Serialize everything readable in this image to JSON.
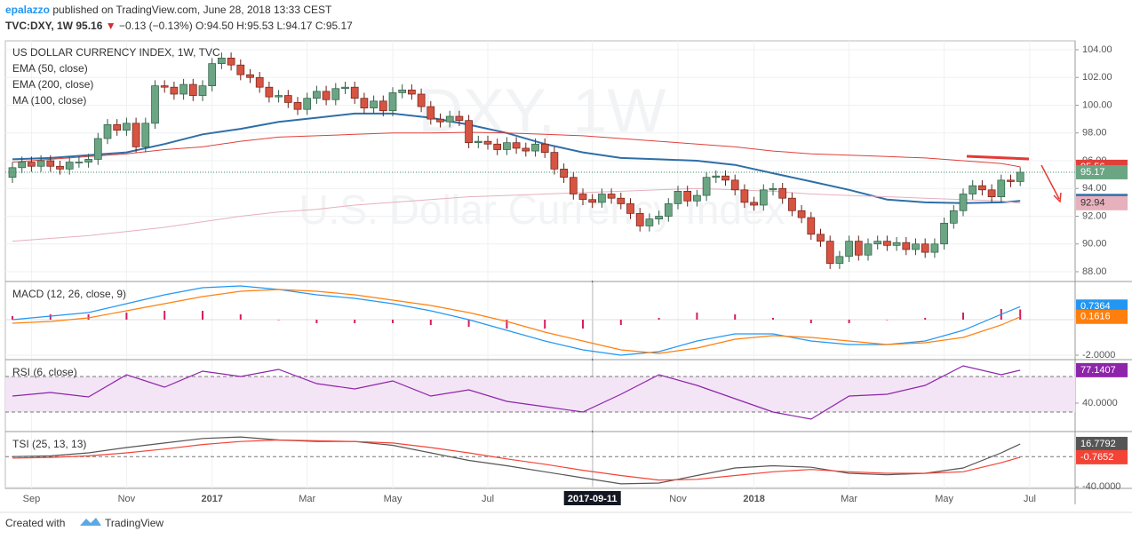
{
  "header": {
    "author": "epalazzo",
    "published": "published on TradingView.com, June 28, 2018 13:33 CEST",
    "symbol": "TVC:DXY, 1W",
    "last": "95.16",
    "arrow": "▼",
    "change": "−0.13 (−0.13%)",
    "ohlc": "O:94.50 H:95.53 L:94.17 C:95.17"
  },
  "footer": {
    "created": "Created with",
    "brand": "TradingView"
  },
  "chart_data": [
    {
      "type": "candlestick",
      "title": "US DOLLAR CURRENCY INDEX, 1W, TVC",
      "watermark": [
        "DXY, 1W",
        "U.S. Dollar Currency Index"
      ],
      "crosshair": "2017-09-11",
      "grid": true,
      "up_color": "#6ba583",
      "down_color": "#d75442",
      "categories": [
        null,
        null,
        "Sep",
        null,
        null,
        null,
        null,
        null,
        null,
        null,
        null,
        null,
        "Nov",
        null,
        null,
        null,
        null,
        null,
        null,
        null,
        null,
        "2017",
        null,
        null,
        null,
        null,
        null,
        null,
        null,
        null,
        null,
        "Mar",
        null,
        null,
        null,
        null,
        null,
        null,
        null,
        null,
        "May",
        null,
        null,
        null,
        null,
        null,
        null,
        null,
        null,
        null,
        "Jul",
        null,
        null,
        null,
        null,
        null,
        null,
        null,
        null,
        null,
        null,
        "2017-09-11",
        null,
        null,
        null,
        null,
        null,
        null,
        null,
        null,
        "Nov",
        null,
        null,
        null,
        null,
        null,
        null,
        null,
        "2018",
        null,
        null,
        null,
        null,
        null,
        null,
        null,
        null,
        null,
        "Mar",
        null,
        null,
        null,
        null,
        null,
        null,
        null,
        null,
        null,
        "May",
        null,
        null,
        null,
        null,
        null,
        null,
        null,
        null,
        "Jul",
        null
      ],
      "open": [
        94.8,
        95.5,
        95.9,
        95.6,
        96.0,
        95.6,
        95.4,
        95.9,
        95.9,
        96.1,
        97.6,
        98.6,
        98.2,
        98.7,
        97.0,
        98.7,
        101.4,
        101.3,
        100.8,
        101.5,
        100.7,
        101.4,
        103.0,
        103.4,
        102.9,
        102.2,
        102.0,
        101.3,
        100.6,
        100.7,
        100.2,
        99.7,
        100.5,
        101.0,
        100.4,
        101.2,
        101.3,
        100.5,
        99.8,
        100.3,
        99.6,
        100.9,
        101.1,
        100.8,
        99.9,
        99.0,
        98.8,
        99.2,
        98.9,
        97.3,
        97.4,
        97.2,
        96.8,
        97.3,
        96.9,
        96.7,
        97.2,
        96.6,
        95.4,
        94.8,
        93.6,
        93.2,
        93.0,
        93.6,
        93.3,
        92.9,
        92.2,
        91.3,
        91.8,
        92.0,
        92.9,
        93.8,
        93.1,
        93.5,
        94.8,
        94.9,
        94.6,
        93.9,
        93.0,
        92.8,
        93.9,
        94.0,
        93.3,
        92.4,
        91.9,
        90.7,
        90.2,
        88.6,
        89.1,
        90.2,
        89.2,
        90.0,
        90.2,
        89.9,
        90.1,
        89.6,
        90.0,
        89.4,
        90.0,
        91.5,
        92.4,
        93.6,
        94.2,
        93.9,
        93.4,
        94.6,
        94.5,
        null,
        null
      ],
      "high": [
        95.9,
        96.3,
        96.3,
        96.4,
        96.4,
        96.0,
        96.3,
        96.3,
        96.5,
        98.0,
        99.0,
        99.0,
        99.1,
        99.1,
        99.1,
        101.8,
        101.8,
        101.7,
        101.9,
        101.9,
        101.8,
        103.4,
        103.8,
        103.8,
        103.3,
        102.6,
        102.4,
        101.7,
        101.1,
        101.1,
        100.6,
        100.9,
        101.4,
        101.4,
        101.6,
        101.7,
        101.7,
        100.9,
        100.7,
        100.7,
        101.3,
        101.5,
        101.5,
        101.2,
        100.3,
        99.4,
        99.6,
        99.6,
        99.3,
        97.8,
        97.8,
        97.6,
        97.7,
        97.7,
        97.3,
        97.6,
        97.6,
        97.0,
        95.8,
        95.2,
        94.0,
        93.6,
        94.0,
        94.0,
        93.7,
        93.3,
        92.6,
        92.2,
        92.4,
        93.3,
        94.2,
        94.2,
        93.9,
        95.2,
        95.3,
        95.3,
        95.0,
        94.3,
        93.4,
        94.3,
        94.4,
        94.4,
        93.7,
        92.8,
        92.3,
        91.1,
        90.6,
        89.5,
        90.6,
        90.6,
        90.4,
        90.6,
        90.6,
        90.5,
        90.5,
        90.4,
        90.4,
        90.4,
        91.9,
        92.8,
        94.0,
        94.6,
        94.6,
        94.3,
        95.0,
        95.0,
        95.53,
        null,
        null
      ],
      "low": [
        94.4,
        95.1,
        95.2,
        95.2,
        95.2,
        95.0,
        95.0,
        95.5,
        95.5,
        95.7,
        97.2,
        97.8,
        97.8,
        96.6,
        96.6,
        98.3,
        100.9,
        100.4,
        100.4,
        100.3,
        100.3,
        101.0,
        102.6,
        102.5,
        101.8,
        101.6,
        100.9,
        100.2,
        100.2,
        99.8,
        99.3,
        99.3,
        100.1,
        100.0,
        100.0,
        100.8,
        100.1,
        99.4,
        99.4,
        99.2,
        99.2,
        100.5,
        100.4,
        99.5,
        98.6,
        98.4,
        98.4,
        98.5,
        96.9,
        96.9,
        96.8,
        96.4,
        96.4,
        96.5,
        96.3,
        96.3,
        96.2,
        95.0,
        94.4,
        93.2,
        92.8,
        92.6,
        92.6,
        92.9,
        92.5,
        91.8,
        90.9,
        90.9,
        91.4,
        91.6,
        92.5,
        92.7,
        92.7,
        93.1,
        94.4,
        94.2,
        93.5,
        92.6,
        92.4,
        92.4,
        93.5,
        92.9,
        92.0,
        91.5,
        90.3,
        89.8,
        88.2,
        88.2,
        88.7,
        88.8,
        88.8,
        89.6,
        89.5,
        89.5,
        89.2,
        89.2,
        89.0,
        89.0,
        89.6,
        91.1,
        92.0,
        93.2,
        93.5,
        93.0,
        93.0,
        94.1,
        94.17,
        null,
        null
      ],
      "close": [
        95.5,
        95.9,
        95.6,
        96.0,
        95.6,
        95.4,
        95.9,
        95.9,
        96.1,
        97.6,
        98.6,
        98.2,
        98.7,
        97.0,
        98.7,
        101.4,
        101.3,
        100.8,
        101.5,
        100.7,
        101.4,
        103.0,
        103.4,
        102.9,
        102.2,
        102.0,
        101.3,
        100.6,
        100.7,
        100.2,
        99.7,
        100.5,
        101.0,
        100.4,
        101.2,
        101.3,
        100.5,
        99.8,
        100.3,
        99.6,
        100.9,
        101.1,
        100.8,
        99.9,
        99.0,
        98.8,
        99.2,
        98.9,
        97.3,
        97.4,
        97.2,
        96.8,
        97.3,
        96.9,
        96.7,
        97.2,
        96.6,
        95.4,
        94.8,
        93.6,
        93.2,
        93.0,
        93.6,
        93.3,
        92.9,
        92.2,
        91.3,
        91.8,
        92.0,
        92.9,
        93.8,
        93.1,
        93.5,
        94.8,
        94.9,
        94.6,
        93.9,
        93.0,
        92.8,
        93.9,
        94.0,
        93.3,
        92.4,
        91.9,
        90.7,
        90.2,
        88.6,
        89.1,
        90.2,
        89.2,
        90.0,
        90.2,
        89.9,
        90.1,
        89.6,
        90.0,
        89.4,
        90.0,
        91.5,
        92.4,
        93.6,
        94.2,
        93.9,
        93.4,
        94.6,
        94.5,
        95.17,
        null,
        null
      ],
      "ylim": [
        87.36,
        104.64
      ],
      "yticks": [
        {
          "value": 88,
          "label": "88.00"
        },
        {
          "value": 90,
          "label": "90.00"
        },
        {
          "value": 92,
          "label": "92.00"
        },
        {
          "value": 94,
          "label": "94.00"
        },
        {
          "value": 96,
          "label": "96.00"
        },
        {
          "value": 98,
          "label": "98.00"
        },
        {
          "value": 100,
          "label": "100.00"
        },
        {
          "value": 102,
          "label": "102.00"
        },
        {
          "value": 104,
          "label": "104.00"
        }
      ],
      "series": [
        {
          "name": "EMA (50, close)",
          "color": "#2f6ea8",
          "width": 2,
          "last_label": "93.10",
          "x": [
            0,
            4,
            8,
            12,
            16,
            20,
            24,
            28,
            32,
            36,
            40,
            44,
            48,
            52,
            56,
            60,
            64,
            68,
            72,
            76,
            80,
            84,
            88,
            92,
            96,
            100,
            104,
            106
          ],
          "values": [
            96.1,
            96.2,
            96.4,
            96.6,
            97.2,
            97.9,
            98.3,
            98.8,
            99.1,
            99.4,
            99.4,
            99.1,
            98.6,
            98.0,
            97.2,
            96.6,
            96.2,
            96.1,
            96.0,
            95.7,
            95.1,
            94.5,
            93.9,
            93.2,
            93.0,
            92.95,
            93.0,
            93.1
          ]
        },
        {
          "name": "EMA (200, close)",
          "color": "#e0403a",
          "width": 1,
          "x": [
            0,
            4,
            8,
            12,
            16,
            20,
            24,
            28,
            32,
            36,
            40,
            44,
            48,
            52,
            56,
            60,
            64,
            68,
            72,
            76,
            80,
            84,
            88,
            92,
            96,
            100,
            104,
            106
          ],
          "values": [
            95.9,
            96.1,
            96.3,
            96.5,
            96.8,
            97.0,
            97.4,
            97.7,
            97.8,
            97.9,
            98.0,
            98.0,
            98.05,
            98.0,
            97.9,
            97.8,
            97.6,
            97.4,
            97.2,
            97.0,
            96.7,
            96.5,
            96.4,
            96.3,
            96.2,
            96.0,
            95.8,
            95.56
          ]
        },
        {
          "name": "MA (100, close)",
          "color": "#e6b0bc",
          "width": 1,
          "x": [
            0,
            4,
            8,
            12,
            16,
            20,
            24,
            28,
            32,
            36,
            40,
            44,
            48,
            52,
            56,
            60,
            64,
            68,
            72,
            76,
            80,
            84,
            88,
            92,
            96,
            100,
            104,
            106
          ],
          "values": [
            90.2,
            90.4,
            90.6,
            90.9,
            91.2,
            91.6,
            92.0,
            92.3,
            92.5,
            92.8,
            93.0,
            93.2,
            93.4,
            93.5,
            93.6,
            93.7,
            93.8,
            93.9,
            94.0,
            93.9,
            93.8,
            93.6,
            93.5,
            93.4,
            93.3,
            93.2,
            93.1,
            92.94
          ]
        }
      ]
    },
    {
      "type": "macd",
      "title": "MACD (12, 26, close, 9)",
      "ylim": [
        -2.2,
        2.1
      ],
      "yticks": [
        {
          "value": -2,
          "label": "-2.0000"
        }
      ],
      "series": [
        {
          "style": "histogram",
          "color": "#d81b60",
          "x": [
            0,
            4,
            8,
            12,
            16,
            20,
            24,
            28,
            32,
            36,
            40,
            44,
            48,
            52,
            56,
            60,
            64,
            68,
            72,
            76,
            80,
            84,
            88,
            92,
            96,
            100,
            104,
            106
          ],
          "values": [
            0.2,
            0.3,
            0.3,
            0.4,
            0.5,
            0.5,
            0.3,
            0,
            -0.2,
            -0.2,
            -0.2,
            -0.3,
            -0.4,
            -0.5,
            -0.5,
            -0.5,
            -0.3,
            0.1,
            0.4,
            0.3,
            0.1,
            -0.2,
            -0.2,
            0,
            0.1,
            0.4,
            0.6,
            0.5748
          ]
        },
        {
          "style": "line",
          "color": "#2196f3",
          "x": [
            0,
            4,
            8,
            12,
            16,
            20,
            24,
            28,
            32,
            36,
            40,
            44,
            48,
            52,
            56,
            60,
            64,
            68,
            72,
            76,
            80,
            84,
            88,
            92,
            96,
            100,
            104,
            106
          ],
          "values": [
            0,
            0.2,
            0.4,
            0.9,
            1.4,
            1.8,
            1.9,
            1.7,
            1.4,
            1.2,
            0.9,
            0.5,
            0.0,
            -0.6,
            -1.2,
            -1.7,
            -2.0,
            -1.8,
            -1.2,
            -0.8,
            -0.8,
            -1.2,
            -1.4,
            -1.4,
            -1.2,
            -0.6,
            0.3,
            0.7364
          ]
        },
        {
          "style": "line",
          "color": "#ff7f0e",
          "x": [
            0,
            4,
            8,
            12,
            16,
            20,
            24,
            28,
            32,
            36,
            40,
            44,
            48,
            52,
            56,
            60,
            64,
            68,
            72,
            76,
            80,
            84,
            88,
            92,
            96,
            100,
            104,
            106
          ],
          "values": [
            -0.2,
            -0.1,
            0.1,
            0.5,
            0.9,
            1.3,
            1.6,
            1.7,
            1.6,
            1.4,
            1.1,
            0.8,
            0.4,
            -0.1,
            -0.7,
            -1.2,
            -1.7,
            -1.9,
            -1.6,
            -1.1,
            -0.9,
            -1.0,
            -1.2,
            -1.4,
            -1.3,
            -1.0,
            -0.3,
            0.1616
          ]
        }
      ]
    },
    {
      "type": "rsi",
      "title": "RSI (6, close)",
      "ylim": [
        9,
        88
      ],
      "yticks": [
        {
          "value": 40,
          "label": "40.0000"
        }
      ],
      "bands": [
        30,
        70
      ],
      "band_color": "#f3e5f5",
      "series": [
        {
          "style": "line",
          "color": "#8e24aa",
          "x": [
            0,
            4,
            8,
            12,
            16,
            20,
            24,
            28,
            32,
            36,
            40,
            44,
            48,
            52,
            56,
            60,
            64,
            68,
            72,
            76,
            80,
            84,
            88,
            92,
            96,
            100,
            104,
            106
          ],
          "values": [
            48,
            52,
            47,
            72,
            58,
            76,
            70,
            78,
            62,
            56,
            65,
            48,
            55,
            42,
            36,
            30,
            50,
            72,
            60,
            45,
            30,
            22,
            48,
            50,
            60,
            82,
            72,
            77.1407
          ]
        }
      ]
    },
    {
      "type": "tsi",
      "title": "TSI (25, 13, 13)",
      "ylim": [
        -42,
        32
      ],
      "yticks": [
        {
          "value": -40,
          "label": "-40.0000"
        }
      ],
      "hlines": [
        0
      ],
      "series": [
        {
          "style": "line",
          "color": "#555555",
          "x": [
            0,
            4,
            8,
            12,
            16,
            20,
            24,
            28,
            32,
            36,
            40,
            44,
            48,
            52,
            56,
            60,
            64,
            68,
            72,
            76,
            80,
            84,
            88,
            92,
            96,
            100,
            104,
            106
          ],
          "values": [
            0,
            1,
            5,
            12,
            18,
            24,
            26,
            22,
            20,
            20,
            15,
            5,
            -5,
            -12,
            -20,
            -28,
            -36,
            -35,
            -25,
            -15,
            -12,
            -14,
            -22,
            -24,
            -22,
            -15,
            5,
            16.7792
          ]
        },
        {
          "style": "line",
          "color": "#f44336",
          "x": [
            0,
            4,
            8,
            12,
            16,
            20,
            24,
            28,
            32,
            36,
            40,
            44,
            48,
            52,
            56,
            60,
            64,
            68,
            72,
            76,
            80,
            84,
            88,
            92,
            96,
            100,
            104,
            106
          ],
          "values": [
            -2,
            -1,
            1,
            5,
            10,
            16,
            20,
            22,
            21,
            20,
            18,
            12,
            5,
            -3,
            -10,
            -18,
            -25,
            -31,
            -30,
            -25,
            -20,
            -17,
            -20,
            -22,
            -22,
            -20,
            -8,
            -0.7652
          ]
        }
      ]
    }
  ]
}
